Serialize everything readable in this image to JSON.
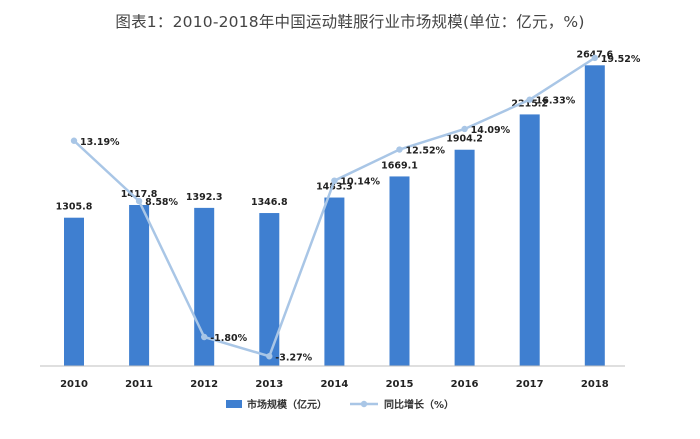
{
  "title": "图表1：2010-2018年中国运动鞋服行业市场规模(单位：亿元，%)",
  "colors": {
    "bar": "#3f7fd0",
    "line": "#a9c6e6",
    "marker": "#a9c6e6",
    "axis": "#bfbfbf"
  },
  "chart_data": {
    "type": "bar",
    "categories": [
      "2010",
      "2011",
      "2012",
      "2013",
      "2014",
      "2015",
      "2016",
      "2017",
      "2018"
    ],
    "series": [
      {
        "name": "市场规模（亿元）",
        "type": "bar",
        "axis": "left",
        "values": [
          1305.8,
          1417.8,
          1392.3,
          1346.8,
          1483.3,
          1669.1,
          1904.2,
          2215.2,
          2647.6
        ],
        "labels": [
          "1305.8",
          "1417.8",
          "1392.3",
          "1346.8",
          "1483.3",
          "1669.1",
          "1904.2",
          "2215.2",
          "2647.6"
        ]
      },
      {
        "name": "同比增长（%）",
        "type": "line",
        "axis": "right",
        "values": [
          13.19,
          8.58,
          -1.8,
          -3.27,
          10.14,
          12.52,
          14.09,
          16.33,
          19.52
        ],
        "labels": [
          "13.19%",
          "8.58%",
          "-1.80%",
          "-3.27%",
          "10.14%",
          "12.52%",
          "14.09%",
          "16.33%",
          "19.52%"
        ]
      }
    ],
    "ylim_left": [
      0,
      2800
    ],
    "ylim_right": [
      -6,
      21
    ],
    "grid": false,
    "legend": "bottom-center"
  }
}
